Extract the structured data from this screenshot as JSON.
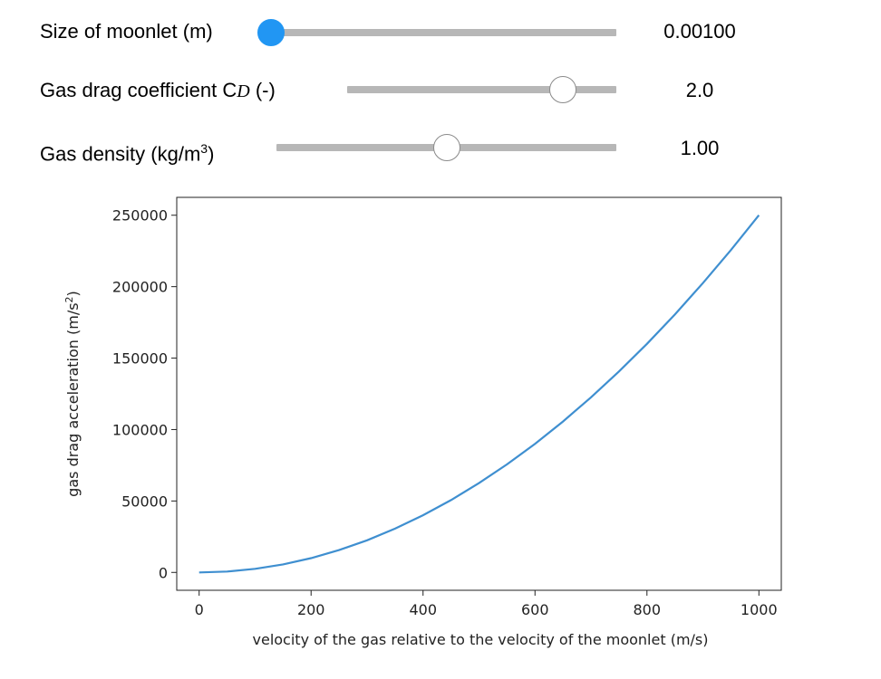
{
  "controls": [
    {
      "label": "Size of moonlet (m)",
      "value": "0.00100",
      "slider_fraction": 0.0
    },
    {
      "label_prefix": "Gas drag coefficient C",
      "label_subscript": "D",
      "label_suffix": " (-)",
      "value": "2.0",
      "slider_fraction": 0.8
    },
    {
      "label_prefix": "Gas density (kg/m",
      "label_sup": "3",
      "label_suffix": ")",
      "value": "1.00",
      "slider_fraction": 0.5
    }
  ],
  "colors": {
    "accent": "#2196f3",
    "track": "#b7b7b7",
    "line": "#3f8fd0"
  },
  "chart_data": {
    "type": "line",
    "xlabel": "velocity of the gas relative to the velocity of the moonlet (m/s)",
    "ylabel_prefix": "gas drag acceleration (m/s",
    "ylabel_sup": "2",
    "ylabel_suffix": ")",
    "xlim": [
      -40,
      1040
    ],
    "ylim": [
      -12500,
      262500
    ],
    "xticks": [
      0,
      200,
      400,
      600,
      800,
      1000
    ],
    "xtick_labels": [
      "0",
      "200",
      "400",
      "600",
      "800",
      "1000"
    ],
    "yticks": [
      0,
      50000,
      100000,
      150000,
      200000,
      250000
    ],
    "ytick_labels": [
      "0",
      "50000",
      "100000",
      "150000",
      "200000",
      "250000"
    ],
    "grid": false,
    "series": [
      {
        "formula": "y = 0.25 * x^2",
        "x": [
          0,
          50,
          100,
          150,
          200,
          250,
          300,
          350,
          400,
          450,
          500,
          550,
          600,
          650,
          700,
          750,
          800,
          850,
          900,
          950,
          1000
        ],
        "y": [
          0,
          625,
          2500,
          5625,
          10000,
          15625,
          22500,
          30625,
          40000,
          50625,
          62500,
          75625,
          90000,
          105625,
          122500,
          140625,
          160000,
          180625,
          202500,
          225625,
          250000
        ]
      }
    ]
  }
}
